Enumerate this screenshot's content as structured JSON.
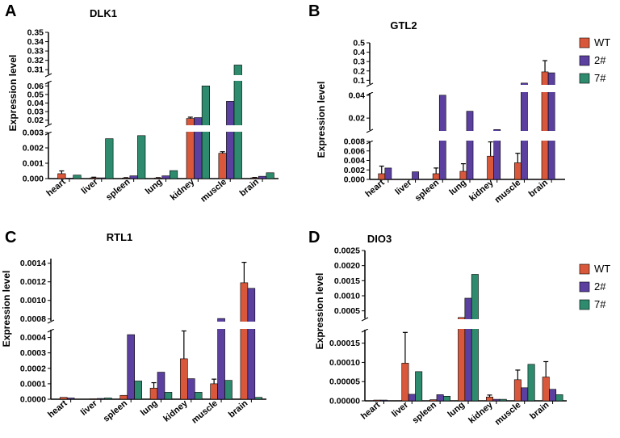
{
  "legend_labels": [
    "WT",
    "2#",
    "7#"
  ],
  "colors": {
    "WT": "#d9583b",
    "2#": "#5b40a0",
    "7#": "#2e8b6e",
    "axis": "#000000",
    "error": "#000000"
  },
  "chart_data": [
    {
      "panel_letter": "A",
      "title": "DLK1",
      "type": "bar",
      "ylabel": "Expression level",
      "categories": [
        "heart",
        "liver",
        "spleen",
        "lung",
        "kidney",
        "muscle",
        "brain"
      ],
      "series": [
        {
          "name": "WT",
          "values": [
            0.00032,
            5e-05,
            4e-05,
            4e-05,
            0.022,
            0.00165,
            5e-05
          ],
          "errors": [
            0.00018,
            4e-05,
            2e-05,
            2e-05,
            0.0015,
            0.0001,
            2e-05
          ]
        },
        {
          "name": "2#",
          "values": [
            3e-05,
            5e-05,
            0.00018,
            0.00018,
            0.023,
            0.042,
            0.00015
          ],
          "errors": [
            0.0,
            0.0,
            0.0,
            0.0,
            0.0,
            0.0,
            0.0
          ]
        },
        {
          "name": "7#",
          "values": [
            0.00023,
            0.0026,
            0.0028,
            0.00052,
            0.06,
            0.315,
            0.00038
          ],
          "errors": [
            0.0,
            0.0,
            0.0,
            0.0,
            0.0,
            0.0,
            0.0
          ]
        }
      ],
      "segments": [
        {
          "range": [
            0,
            0.003
          ],
          "ticks": [
            "0.000",
            "0.001",
            "0.002",
            "0.003"
          ]
        },
        {
          "range": [
            0.015,
            0.065
          ],
          "ticks": [
            "0.02",
            "0.03",
            "0.04",
            "0.05",
            "0.06"
          ]
        },
        {
          "range": [
            0.305,
            0.35
          ],
          "ticks": [
            "0.31",
            "0.32",
            "0.33",
            "0.34",
            "0.35"
          ]
        }
      ],
      "legend": false
    },
    {
      "panel_letter": "B",
      "title": "GTL2",
      "type": "bar",
      "ylabel": "Expression level",
      "categories": [
        "heart",
        "liver",
        "spleen",
        "lung",
        "kidney",
        "muscle",
        "brain"
      ],
      "series": [
        {
          "name": "WT",
          "values": [
            0.0012,
            0.0,
            0.0012,
            0.0017,
            0.0049,
            0.0035,
            0.19
          ],
          "errors": [
            0.0016,
            0.0,
            0.0012,
            0.0016,
            0.003,
            0.002,
            0.12
          ]
        },
        {
          "name": "2#",
          "values": [
            0.0024,
            0.0016,
            0.04,
            0.026,
            0.01,
            0.07,
            0.18
          ],
          "errors": [
            0.0,
            0.0,
            0.0,
            0.0,
            0.0,
            0.0,
            0.0
          ]
        },
        {
          "name": "7#",
          "values": [
            0.0,
            0.0,
            0.0,
            0.0,
            0.0,
            0.0,
            0.0
          ],
          "errors": [
            0.0,
            0.0,
            0.0,
            0.0,
            0.0,
            0.0,
            0.0
          ]
        }
      ],
      "segments": [
        {
          "range": [
            0,
            0.008
          ],
          "ticks": [
            "0.000",
            "0.002",
            "0.004",
            "0.006",
            "0.008"
          ]
        },
        {
          "range": [
            0.0095,
            0.042
          ],
          "ticks": [
            "0.02",
            "0.04"
          ]
        },
        {
          "range": [
            0.06,
            0.5
          ],
          "ticks": [
            "0.1",
            "0.2",
            "0.3",
            "0.4",
            "0.5"
          ]
        }
      ],
      "legend": true
    },
    {
      "panel_letter": "C",
      "title": "RTL1",
      "type": "bar",
      "ylabel": "Expression level",
      "categories": [
        "heart",
        "liver",
        "spleen",
        "lung",
        "kidney",
        "muscle",
        "brain"
      ],
      "series": [
        {
          "name": "WT",
          "values": [
            1.2e-05,
            3e-06,
            2.5e-05,
            7.2e-05,
            0.000262,
            0.0001,
            0.00119
          ],
          "errors": [
            0.0,
            0.0,
            0.0,
            3.5e-05,
            0.00018,
            3e-05,
            0.00022
          ]
        },
        {
          "name": "2#",
          "values": [
            8e-06,
            5e-06,
            0.000418,
            0.000175,
            0.000133,
            0.000805,
            0.00113
          ],
          "errors": [
            0.0,
            0.0,
            0.0,
            0.0,
            0.0,
            0.0,
            0.0
          ]
        },
        {
          "name": "7#",
          "values": [
            0.0,
            8e-06,
            0.000118,
            4.5e-05,
            4.5e-05,
            0.000122,
            1.2e-05
          ],
          "errors": [
            0.0,
            0.0,
            0.0,
            0.0,
            0.0,
            0.0,
            0.0
          ]
        }
      ],
      "segments": [
        {
          "range": [
            0,
            0.00045
          ],
          "ticks": [
            "0.0000",
            "0.0001",
            "0.0002",
            "0.0003",
            "0.0004"
          ]
        },
        {
          "range": [
            0.00078,
            0.00145
          ],
          "ticks": [
            "0.0008",
            "0.0010",
            "0.0012",
            "0.0014"
          ]
        }
      ],
      "legend": false
    },
    {
      "panel_letter": "D",
      "title": "DIO3",
      "type": "bar",
      "ylabel": "Expression level",
      "categories": [
        "heart",
        "liver",
        "spleen",
        "lung",
        "kidney",
        "muscle",
        "brain"
      ],
      "series": [
        {
          "name": "WT",
          "values": [
            2e-06,
            9.8e-05,
            3e-06,
            0.00028,
            1e-05,
            5.5e-05,
            6.2e-05
          ],
          "errors": [
            0.0,
            8e-05,
            0.0,
            0.0,
            5e-06,
            2.5e-05,
            4e-05
          ]
        },
        {
          "name": "2#",
          "values": [
            2e-06,
            1.7e-05,
            1.6e-05,
            0.00092,
            4e-06,
            3.4e-05,
            3e-05
          ],
          "errors": [
            0.0,
            0.0,
            0.0,
            0.0,
            0.0,
            0.0,
            0.0
          ]
        },
        {
          "name": "7#",
          "values": [
            0.0,
            7.6e-05,
            1.2e-05,
            0.00171,
            4e-06,
            9.5e-05,
            1.6e-05
          ],
          "errors": [
            0.0,
            0.0,
            0.0,
            0.0,
            0.0,
            0.0,
            0.0
          ]
        }
      ],
      "segments": [
        {
          "range": [
            0,
            0.000185
          ],
          "ticks": [
            "0.00000",
            "0.00005",
            "0.00010",
            "0.00015"
          ]
        },
        {
          "range": [
            0.00025,
            0.0025
          ],
          "ticks": [
            "0.0005",
            "0.0010",
            "0.0015",
            "0.0020",
            "0.0025"
          ]
        }
      ],
      "legend": true
    }
  ]
}
